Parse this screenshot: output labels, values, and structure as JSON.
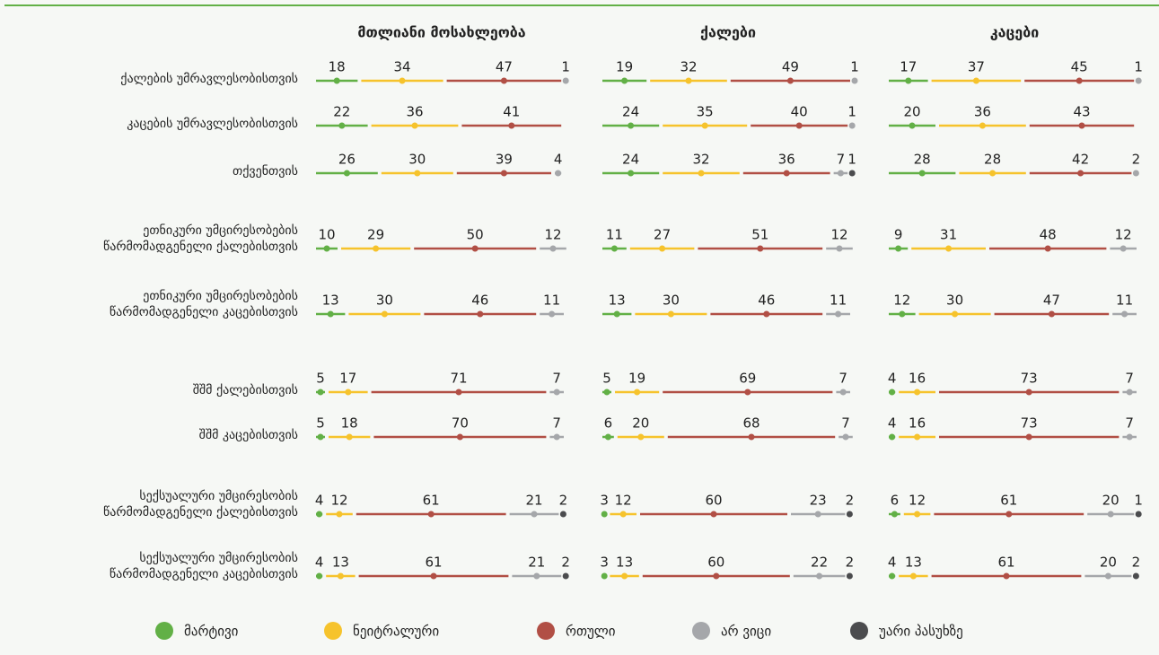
{
  "chart_data": {
    "type": "stacked-bar",
    "categories": [
      "ქალების უმრავლესობისთვის",
      "კაცების უმრავლესობისთვის",
      "თქვენთვის",
      "ეთნიკური უმცირესობების\nწარმომადგენელი ქალებისთვის",
      "ეთნიკური უმცირესობების\nწარმომადგენელი კაცებისთვის",
      "შშმ ქალებისთვის",
      "შშმ კაცებისთვის",
      "სექსუალური უმცირესობის\nწარმომადგენელი ქალებისთვის",
      "სექსუალური უმცირესობის\nწარმომადგენელი კაცებისთვის"
    ],
    "series": [
      {
        "name": "მარტივი",
        "color": "#62b046"
      },
      {
        "name": "ნეიტრალური",
        "color": "#f6c32c"
      },
      {
        "name": "რთული",
        "color": "#b14f45"
      },
      {
        "name": "არ ვიცი",
        "color": "#a5a7aa"
      },
      {
        "name": "უარი პასუხზე",
        "color": "#4b4c4e"
      }
    ],
    "panels": [
      {
        "title": "მთლიანი მოსახლეობა",
        "values": [
          [
            18,
            34,
            47,
            1,
            null
          ],
          [
            22,
            36,
            41,
            null,
            null
          ],
          [
            26,
            30,
            39,
            4,
            null
          ],
          [
            10,
            29,
            50,
            12,
            null
          ],
          [
            13,
            30,
            46,
            11,
            null
          ],
          [
            5,
            17,
            71,
            7,
            null
          ],
          [
            5,
            18,
            70,
            7,
            null
          ],
          [
            4,
            12,
            61,
            21,
            2
          ],
          [
            4,
            13,
            61,
            21,
            2
          ]
        ]
      },
      {
        "title": "ქალები",
        "values": [
          [
            19,
            32,
            49,
            1,
            null
          ],
          [
            24,
            35,
            40,
            1,
            null
          ],
          [
            24,
            32,
            36,
            7,
            1
          ],
          [
            11,
            27,
            51,
            12,
            null
          ],
          [
            13,
            30,
            46,
            11,
            null
          ],
          [
            5,
            19,
            69,
            7,
            null
          ],
          [
            6,
            20,
            68,
            7,
            null
          ],
          [
            3,
            12,
            60,
            23,
            2
          ],
          [
            3,
            13,
            60,
            22,
            2
          ]
        ]
      },
      {
        "title": "კაცები",
        "values": [
          [
            17,
            37,
            45,
            1,
            null
          ],
          [
            20,
            36,
            43,
            null,
            null
          ],
          [
            28,
            28,
            42,
            2,
            null
          ],
          [
            9,
            31,
            48,
            12,
            null
          ],
          [
            12,
            30,
            47,
            11,
            null
          ],
          [
            4,
            16,
            73,
            7,
            null
          ],
          [
            4,
            16,
            73,
            7,
            null
          ],
          [
            6,
            12,
            61,
            20,
            1
          ],
          [
            4,
            13,
            61,
            20,
            2
          ]
        ]
      }
    ]
  }
}
